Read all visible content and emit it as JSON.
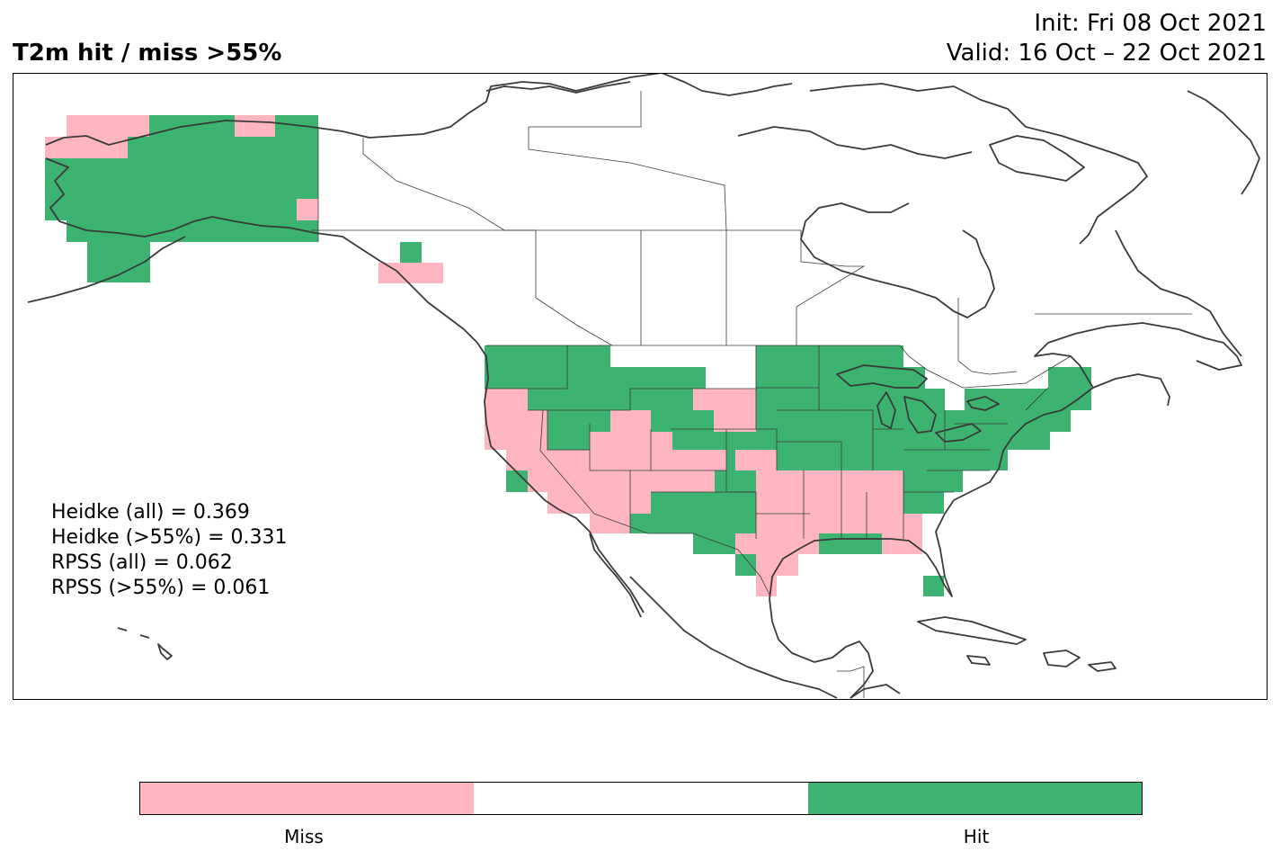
{
  "title": "T2m hit / miss  >55%",
  "init_label": "Init: Fri 08 Oct 2021",
  "valid_label": "Valid: 16 Oct – 22 Oct 2021",
  "stats": [
    "Heidke (all) = 0.369",
    "Heidke (>55%) = 0.331",
    "RPSS (all) = 0.062",
    "RPSS (>55%) = 0.061"
  ],
  "colorbar": {
    "labels": [
      "Miss",
      "Hit"
    ],
    "colors": [
      "#ffb6c1",
      "#ffffff",
      "#3cb371"
    ]
  },
  "colors": {
    "hit": "#3cb371",
    "miss": "#ffb6c1",
    "coastline": "#3a3a3a"
  }
}
